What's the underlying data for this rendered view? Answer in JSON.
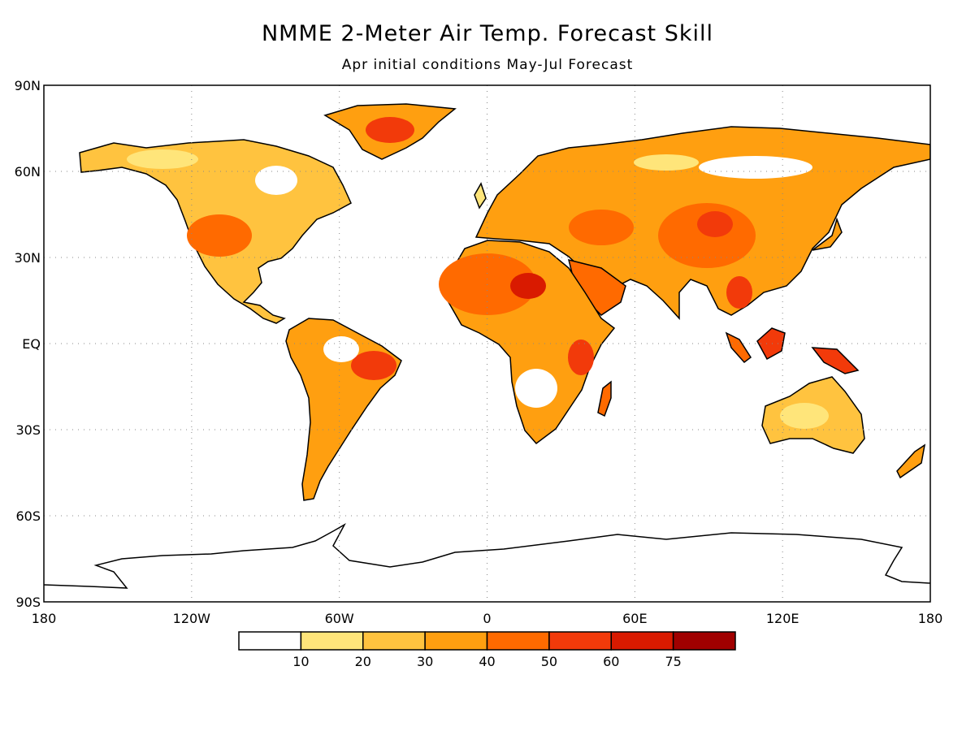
{
  "header": {
    "title": "NMME 2-Meter Air Temp. Forecast Skill",
    "subtitle": "Apr initial conditions  May-Jul Forecast"
  },
  "map": {
    "lat_ticks": [
      "90N",
      "60N",
      "30N",
      "EQ",
      "30S",
      "60S",
      "90S"
    ],
    "lon_ticks": [
      "180",
      "120W",
      "60W",
      "0",
      "60E",
      "120E",
      "180"
    ],
    "grid": "dotted"
  },
  "colorbar": {
    "labels": [
      "10",
      "20",
      "30",
      "40",
      "50",
      "60",
      "75"
    ],
    "colors": [
      "#ffffff",
      "#ffe57a",
      "#ffc33f",
      "#ff9f10",
      "#ff6a00",
      "#f23a0a",
      "#d91a00",
      "#a00000"
    ]
  }
}
